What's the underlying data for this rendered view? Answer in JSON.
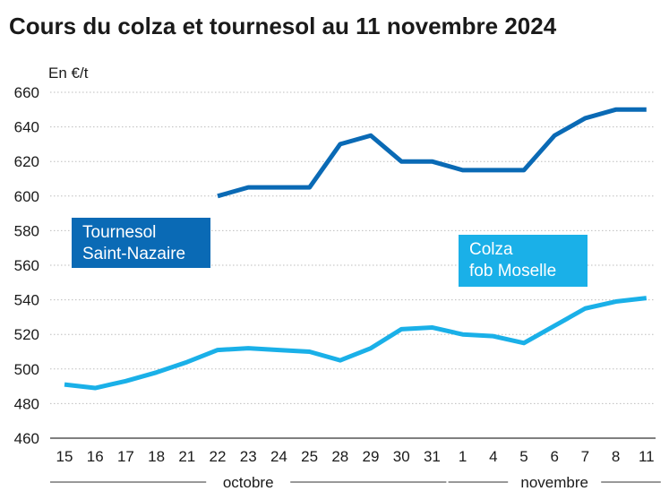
{
  "title": "Cours du colza et tournesol au 11 novembre 2024",
  "chart_data": {
    "type": "line",
    "title": "Cours du colza et tournesol au 11 novembre 2024",
    "ylabel": "En €/t",
    "xlabel": "",
    "ylim": [
      460,
      660
    ],
    "yticks": [
      "460",
      "480",
      "500",
      "520",
      "540",
      "560",
      "580",
      "600",
      "620",
      "640",
      "660"
    ],
    "categories": [
      "15",
      "16",
      "17",
      "18",
      "21",
      "22",
      "23",
      "24",
      "25",
      "28",
      "29",
      "30",
      "31",
      "1",
      "4",
      "5",
      "6",
      "7",
      "8",
      "11"
    ],
    "month_groups": [
      {
        "label": "octobre",
        "from": 0,
        "to": 12
      },
      {
        "label": "novembre",
        "from": 13,
        "to": 19
      }
    ],
    "grid": true,
    "series": [
      {
        "name": "Tournesol Saint-Nazaire",
        "label_lines": [
          "Tournesol",
          "Saint-Nazaire"
        ],
        "color": "#0a6ab5",
        "values": [
          null,
          null,
          null,
          null,
          null,
          600,
          605,
          605,
          605,
          630,
          635,
          620,
          620,
          615,
          615,
          615,
          635,
          645,
          650,
          650
        ]
      },
      {
        "name": "Colza fob Moselle",
        "label_lines": [
          "Colza",
          "fob Moselle"
        ],
        "color": "#1ab0e8",
        "values": [
          491,
          489,
          493,
          498,
          504,
          511,
          512,
          511,
          510,
          505,
          512,
          523,
          524,
          520,
          519,
          515,
          525,
          535,
          539,
          541
        ]
      }
    ]
  }
}
